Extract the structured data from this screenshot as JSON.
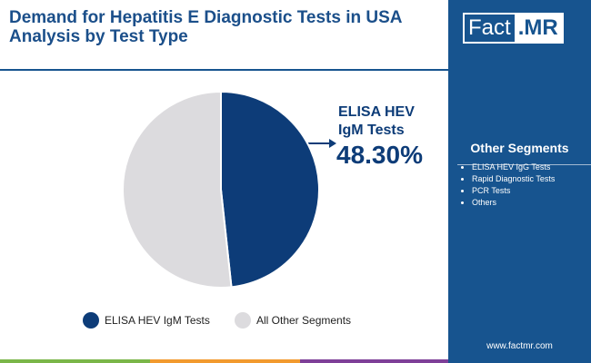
{
  "chart_data": {
    "type": "pie",
    "title": "Demand for Hepatitis E Diagnostic Tests in USA",
    "subtitle": "Analysis by Test Type",
    "categories": [
      "ELISA HEV IgM Tests",
      "All Other Segments"
    ],
    "values": [
      48.3,
      51.7
    ],
    "value_labels": [
      "48.30%",
      null
    ],
    "colors": [
      "#0d3c78",
      "#dcdbde"
    ],
    "legend": "bottom"
  },
  "brand": [
    "Fact",
    ".MR"
  ],
  "sidebar": {
    "title": "Other Segments",
    "items": [
      "ELISA HEV IgG Tests",
      "Rapid Diagnostic Tests",
      "PCR Tests",
      "Others"
    ]
  },
  "website": "www.factmr.com"
}
